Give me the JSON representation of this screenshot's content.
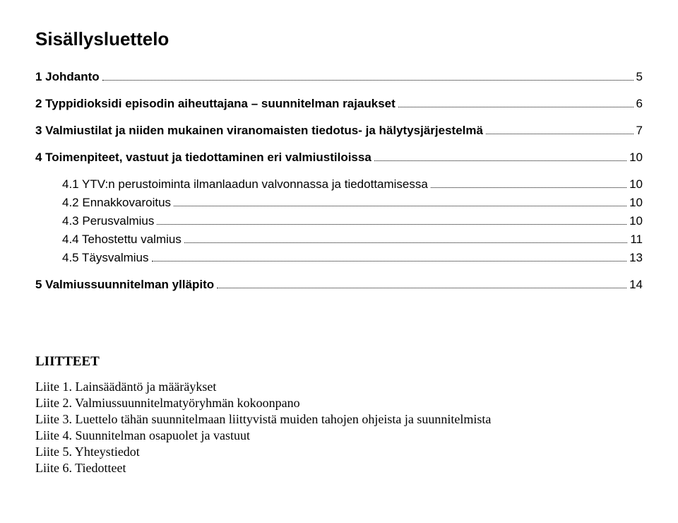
{
  "title": "Sisällysluettelo",
  "toc": [
    {
      "label": "1 Johdanto",
      "page": "5",
      "bold": true,
      "sub": false,
      "section": true
    },
    {
      "label": "2 Typpidioksidi episodin aiheuttajana – suunnitelman rajaukset",
      "page": "6",
      "bold": true,
      "sub": false,
      "section": true
    },
    {
      "label": "3 Valmiustilat ja niiden mukainen viranomaisten tiedotus- ja hälytysjärjestelmä",
      "page": "7",
      "bold": true,
      "sub": false,
      "section": true
    },
    {
      "label": "4 Toimenpiteet, vastuut ja tiedottaminen eri valmiustiloissa",
      "page": "10",
      "bold": true,
      "sub": false,
      "section": true
    },
    {
      "label": "4.1 YTV:n perustoiminta ilmanlaadun valvonnassa ja tiedottamisessa",
      "page": "10",
      "bold": false,
      "sub": true,
      "section": false
    },
    {
      "label": "4.2 Ennakkovaroitus",
      "page": "10",
      "bold": false,
      "sub": true,
      "section": false
    },
    {
      "label": "4.3 Perusvalmius",
      "page": "10",
      "bold": false,
      "sub": true,
      "section": false
    },
    {
      "label": "4.4 Tehostettu valmius",
      "page": "11",
      "bold": false,
      "sub": true,
      "section": false
    },
    {
      "label": "4.5 Täysvalmius",
      "page": "13",
      "bold": false,
      "sub": true,
      "section": false
    },
    {
      "label": "5 Valmiussuunnitelman ylläpito",
      "page": "14",
      "bold": true,
      "sub": false,
      "section": true
    }
  ],
  "appendixTitle": "LIITTEET",
  "appendices": [
    "Liite 1. Lainsäädäntö ja määräykset",
    "Liite 2. Valmiussuunnitelmatyöryhmän kokoonpano",
    "Liite 3. Luettelo tähän suunnitelmaan liittyvistä muiden tahojen ohjeista ja suunnitelmista",
    "Liite 4. Suunnitelman osapuolet ja vastuut",
    "Liite 5. Yhteystiedot",
    "Liite 6. Tiedotteet"
  ]
}
